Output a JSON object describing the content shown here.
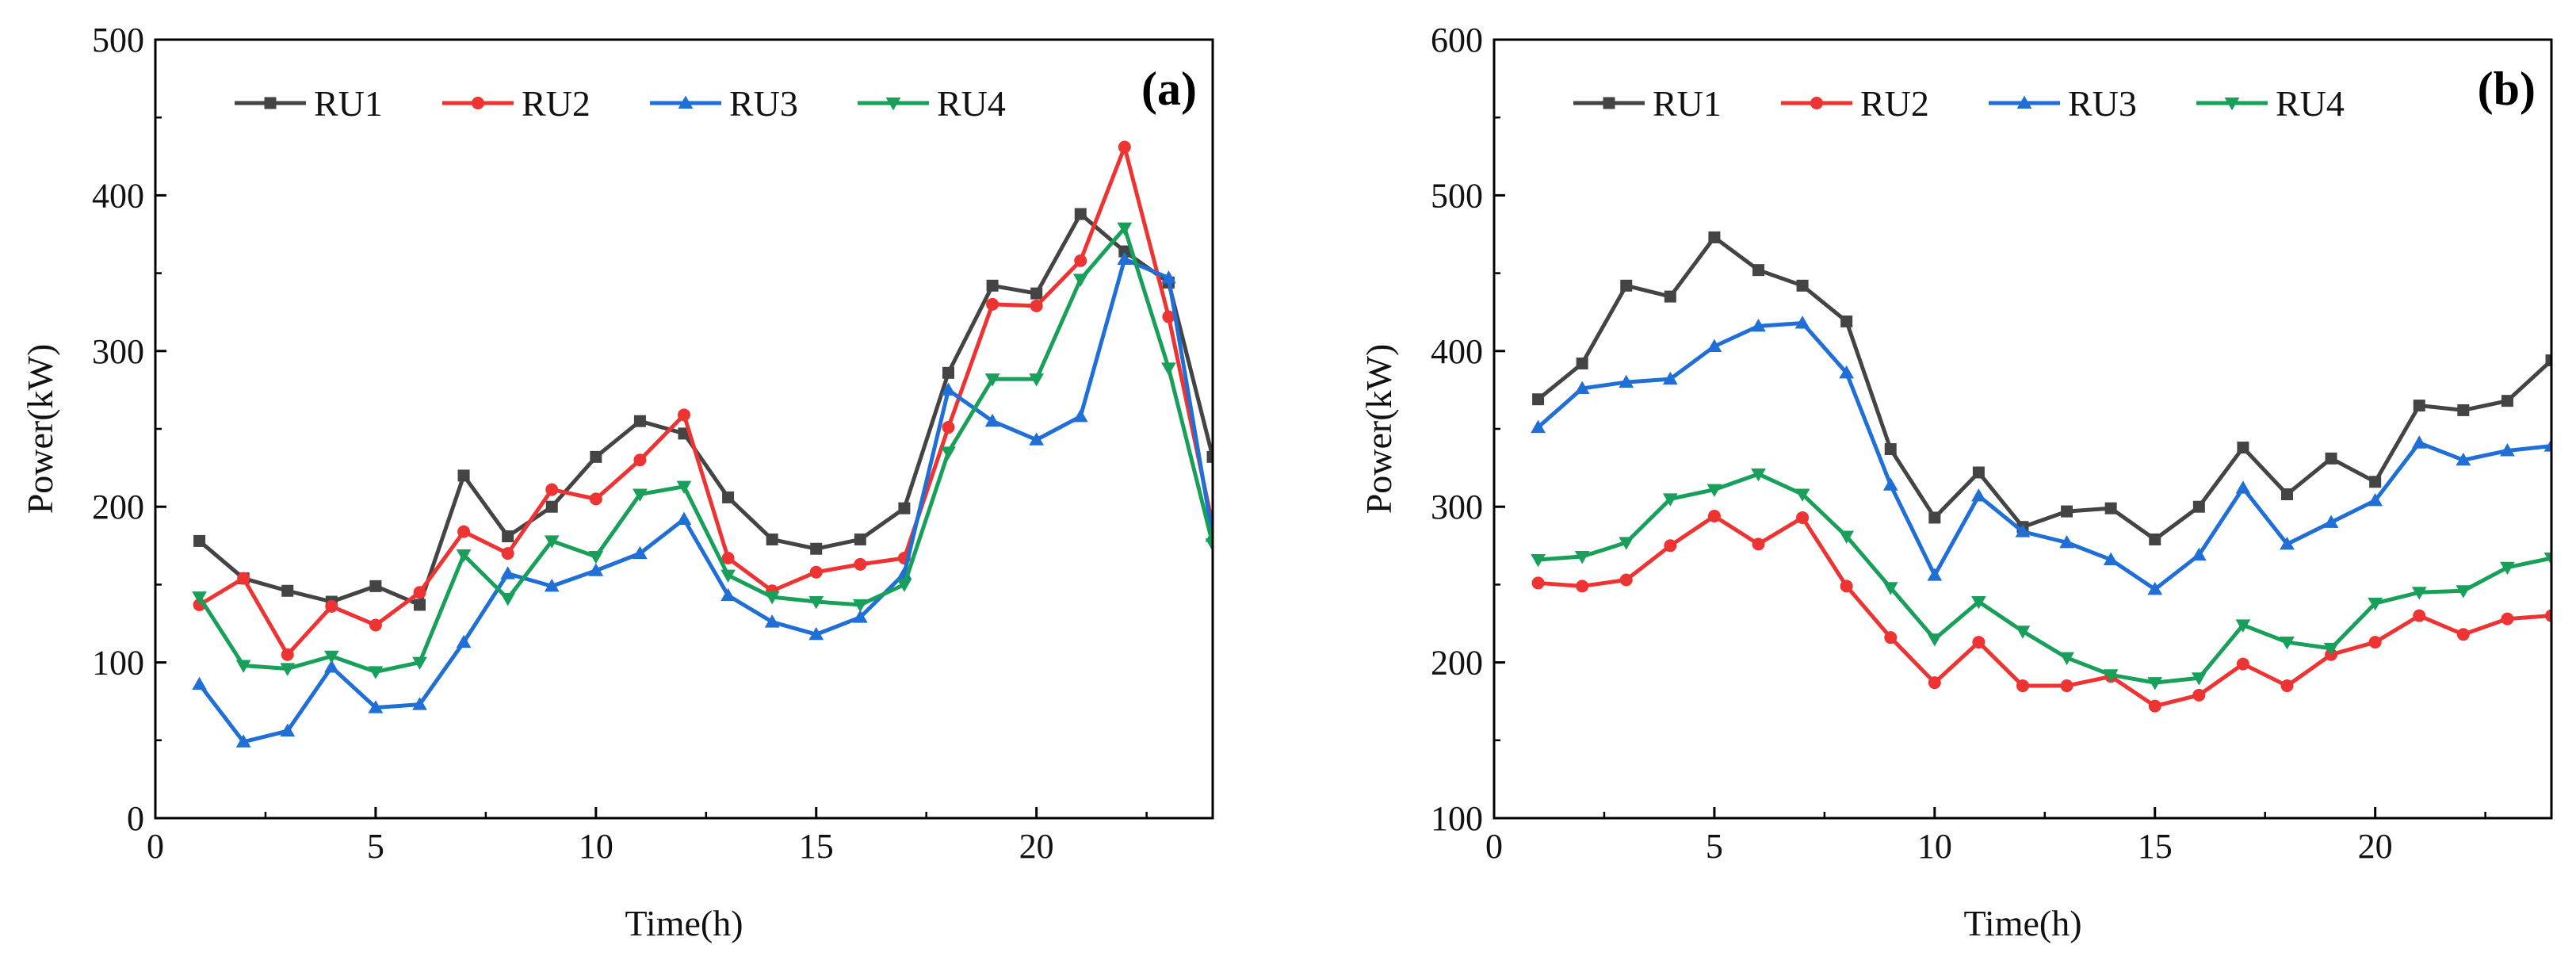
{
  "colors": {
    "RU1": "#444444",
    "RU2": "#ee3333",
    "RU3": "#1f6fd6",
    "RU4": "#18a05a",
    "axis": "#000000"
  },
  "chart_data": [
    {
      "type": "line",
      "panel_label": "(a)",
      "xlabel": "Time(h)",
      "ylabel": "Power(kW)",
      "xlim": [
        0,
        24
      ],
      "ylim": [
        0,
        500
      ],
      "xticks": [
        0,
        5,
        10,
        15,
        20
      ],
      "yticks": [
        0,
        100,
        200,
        300,
        400,
        500
      ],
      "legend_position": "top",
      "x": [
        1,
        2,
        3,
        4,
        5,
        6,
        7,
        8,
        9,
        10,
        11,
        12,
        13,
        14,
        15,
        16,
        17,
        18,
        19,
        20,
        21,
        22,
        23,
        24
      ],
      "series": [
        {
          "name": "RU1",
          "marker": "square",
          "values": [
            178,
            154,
            146,
            139,
            149,
            137,
            220,
            181,
            200,
            232,
            255,
            247,
            206,
            179,
            173,
            179,
            199,
            286,
            342,
            337,
            388,
            364,
            344,
            232
          ]
        },
        {
          "name": "RU2",
          "marker": "circle",
          "values": [
            137,
            154,
            105,
            136,
            124,
            145,
            184,
            170,
            211,
            205,
            230,
            259,
            167,
            146,
            158,
            163,
            167,
            251,
            330,
            329,
            358,
            431,
            322,
            188
          ]
        },
        {
          "name": "RU3",
          "marker": "triangle-up",
          "values": [
            86,
            49,
            56,
            97,
            71,
            73,
            113,
            157,
            149,
            159,
            170,
            192,
            143,
            126,
            118,
            129,
            157,
            275,
            255,
            243,
            258,
            359,
            347,
            181
          ]
        },
        {
          "name": "RU4",
          "marker": "triangle-down",
          "values": [
            142,
            98,
            96,
            104,
            94,
            100,
            169,
            141,
            178,
            168,
            208,
            213,
            156,
            142,
            139,
            137,
            150,
            235,
            282,
            282,
            346,
            379,
            289,
            176
          ]
        }
      ]
    },
    {
      "type": "line",
      "panel_label": "(b)",
      "xlabel": "Time(h)",
      "ylabel": "Power(kW)",
      "xlim": [
        0,
        24
      ],
      "ylim": [
        100,
        600
      ],
      "xticks": [
        0,
        5,
        10,
        15,
        20
      ],
      "yticks": [
        100,
        200,
        300,
        400,
        500,
        600
      ],
      "legend_position": "top",
      "x": [
        1,
        2,
        3,
        4,
        5,
        6,
        7,
        8,
        9,
        10,
        11,
        12,
        13,
        14,
        15,
        16,
        17,
        18,
        19,
        20,
        21,
        22,
        23,
        24
      ],
      "series": [
        {
          "name": "RU1",
          "marker": "square",
          "values": [
            369,
            392,
            442,
            435,
            473,
            452,
            442,
            419,
            337,
            293,
            322,
            287,
            297,
            299,
            279,
            300,
            338,
            308,
            331,
            316,
            365,
            362,
            368,
            394
          ]
        },
        {
          "name": "RU2",
          "marker": "circle",
          "values": [
            251,
            249,
            253,
            275,
            294,
            276,
            293,
            249,
            216,
            187,
            213,
            185,
            185,
            191,
            172,
            179,
            199,
            185,
            205,
            213,
            230,
            218,
            228,
            230
          ]
        },
        {
          "name": "RU3",
          "marker": "triangle-up",
          "values": [
            351,
            376,
            380,
            382,
            403,
            416,
            418,
            386,
            314,
            256,
            307,
            284,
            277,
            266,
            247,
            269,
            312,
            276,
            290,
            304,
            341,
            330,
            336,
            339
          ]
        },
        {
          "name": "RU4",
          "marker": "triangle-down",
          "values": [
            266,
            268,
            277,
            305,
            311,
            321,
            308,
            281,
            248,
            215,
            239,
            220,
            203,
            192,
            187,
            190,
            224,
            213,
            209,
            238,
            245,
            246,
            261,
            267
          ]
        }
      ]
    }
  ]
}
